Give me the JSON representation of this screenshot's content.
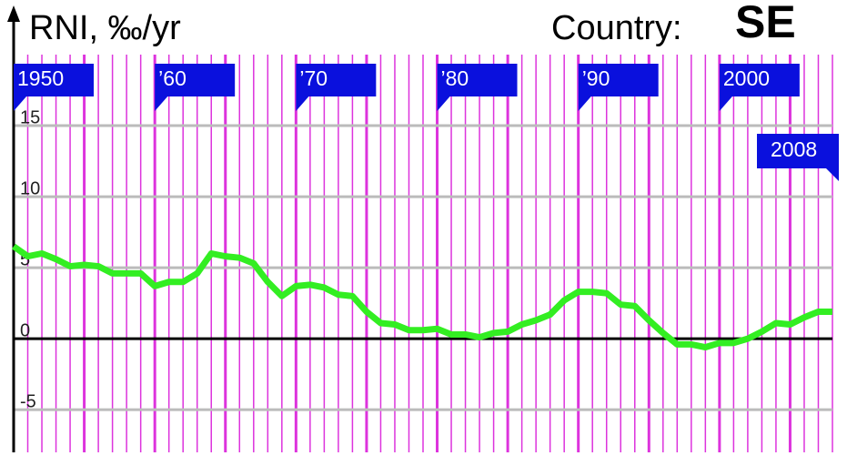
{
  "chart_data": {
    "type": "line",
    "title": "RNI, ‰/yr",
    "country_label": "Country:",
    "country": "SE",
    "series": [
      {
        "name": "RNI",
        "color": "#33ee22",
        "x": [
          1950,
          1951,
          1952,
          1953,
          1954,
          1955,
          1956,
          1957,
          1958,
          1959,
          1960,
          1961,
          1962,
          1963,
          1964,
          1965,
          1966,
          1967,
          1968,
          1969,
          1970,
          1971,
          1972,
          1973,
          1974,
          1975,
          1976,
          1977,
          1978,
          1979,
          1980,
          1981,
          1982,
          1983,
          1984,
          1985,
          1986,
          1987,
          1988,
          1989,
          1990,
          1991,
          1992,
          1993,
          1994,
          1995,
          1996,
          1997,
          1998,
          1999,
          2000,
          2001,
          2002,
          2003,
          2004,
          2005,
          2006,
          2007,
          2008
        ],
        "values": [
          6.5,
          5.8,
          6.0,
          5.6,
          5.1,
          5.2,
          5.1,
          4.6,
          4.6,
          4.6,
          3.7,
          4.0,
          4.0,
          4.6,
          6.0,
          5.8,
          5.7,
          5.3,
          4.0,
          3.0,
          3.7,
          3.8,
          3.6,
          3.1,
          3.0,
          1.9,
          1.1,
          1.0,
          0.6,
          0.6,
          0.7,
          0.3,
          0.3,
          0.1,
          0.4,
          0.5,
          1.0,
          1.3,
          1.7,
          2.7,
          3.3,
          3.3,
          3.2,
          2.4,
          2.3,
          1.3,
          0.4,
          -0.4,
          -0.4,
          -0.6,
          -0.3,
          -0.3,
          0.0,
          0.5,
          1.1,
          1.0,
          1.5,
          1.9,
          1.9
        ]
      }
    ],
    "xlim": [
      1950,
      2008
    ],
    "xticks": [
      {
        "value": 1950,
        "label": "1950"
      },
      {
        "value": 1960,
        "label": "’60"
      },
      {
        "value": 1970,
        "label": "’70"
      },
      {
        "value": 1980,
        "label": "’80"
      },
      {
        "value": 1990,
        "label": "’90"
      },
      {
        "value": 2000,
        "label": "2000"
      },
      {
        "value": 2008,
        "label": "2008"
      }
    ],
    "ylim": [
      -8,
      20
    ],
    "yticks": [
      -5,
      0,
      5,
      10,
      15
    ],
    "grid": true
  }
}
